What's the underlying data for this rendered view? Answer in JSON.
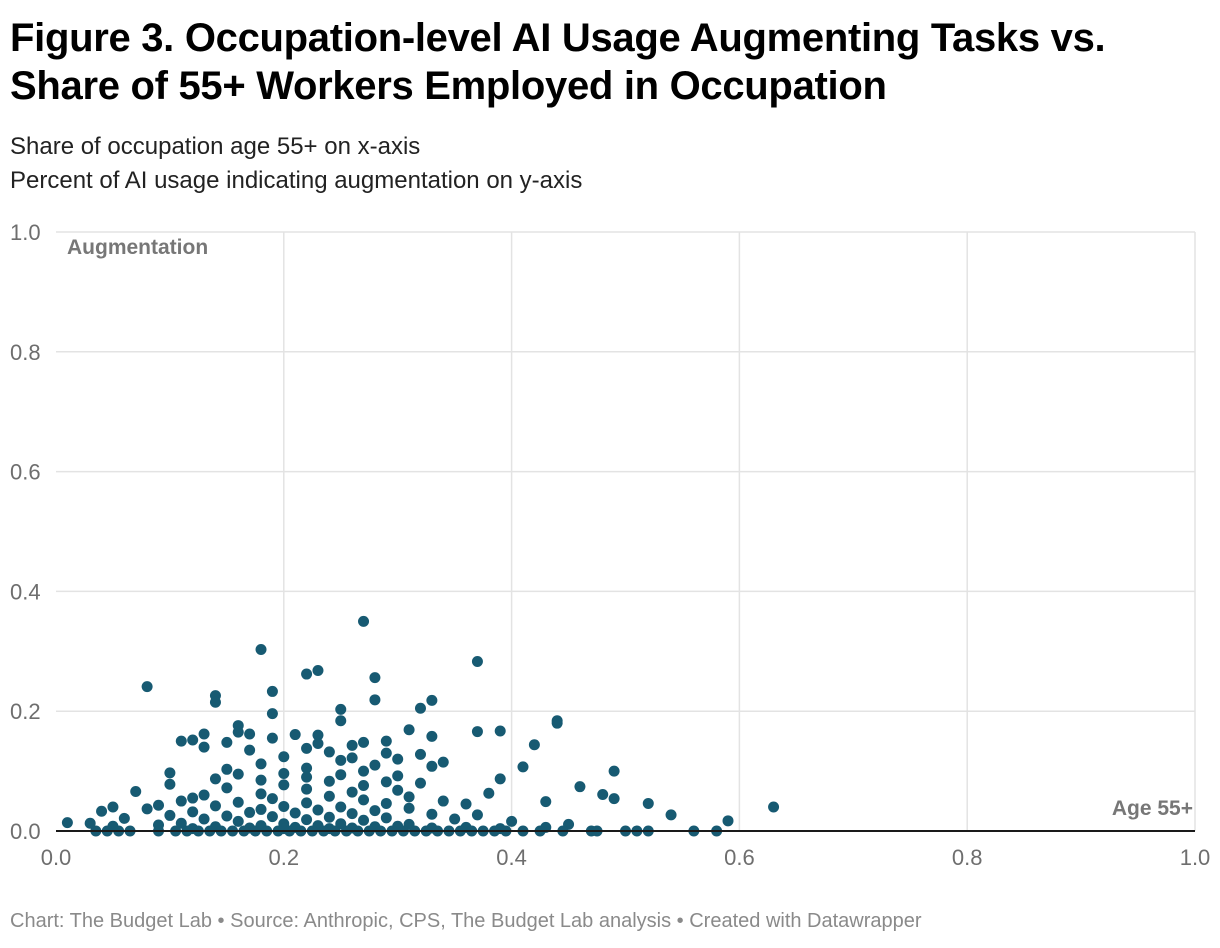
{
  "title": "Figure 3. Occupation-level AI Usage Augmenting Tasks vs. Share of 55+ Workers Employed in Occupation",
  "subtitle": {
    "line1": "Share of occupation age 55+ on x-axis",
    "line2": "Percent of AI usage indicating augmentation on y-axis"
  },
  "footer": "Chart: The Budget Lab • Source: Anthropic, CPS, The Budget Lab analysis • Created with Datawrapper",
  "colors": {
    "point": "#175a72",
    "grid": "#e3e3e3",
    "axis": "#1a1a1a",
    "tick_label": "#6e6e6e",
    "annotation": "#777777"
  },
  "chart_data": {
    "type": "scatter",
    "title": "",
    "xlabel": "",
    "ylabel": "",
    "annotations": {
      "y_axis": "Augmentation",
      "x_axis": "Age 55+"
    },
    "xlim": [
      0,
      1.0
    ],
    "ylim": [
      0,
      1.0
    ],
    "x_ticks": [
      0,
      0.2,
      0.4,
      0.6,
      0.8,
      1.0
    ],
    "x_tick_labels": [
      "0.0",
      "0.2",
      "0.4",
      "0.6",
      "0.8",
      "1.0"
    ],
    "y_ticks": [
      0,
      0.2,
      0.4,
      0.6,
      0.8,
      1.0
    ],
    "y_tick_labels": [
      "0.0",
      "0.2",
      "0.4",
      "0.6",
      "0.8",
      "1.0"
    ],
    "grid": true,
    "points": [
      {
        "x": 0.27,
        "y": 0.35
      },
      {
        "x": 0.18,
        "y": 0.303
      },
      {
        "x": 0.37,
        "y": 0.283
      },
      {
        "x": 0.23,
        "y": 0.268
      },
      {
        "x": 0.22,
        "y": 0.262
      },
      {
        "x": 0.28,
        "y": 0.256
      },
      {
        "x": 0.08,
        "y": 0.241
      },
      {
        "x": 0.19,
        "y": 0.233
      },
      {
        "x": 0.14,
        "y": 0.226
      },
      {
        "x": 0.28,
        "y": 0.219
      },
      {
        "x": 0.33,
        "y": 0.218
      },
      {
        "x": 0.14,
        "y": 0.215
      },
      {
        "x": 0.32,
        "y": 0.205
      },
      {
        "x": 0.25,
        "y": 0.203
      },
      {
        "x": 0.19,
        "y": 0.196
      },
      {
        "x": 0.25,
        "y": 0.184
      },
      {
        "x": 0.44,
        "y": 0.184
      },
      {
        "x": 0.44,
        "y": 0.18
      },
      {
        "x": 0.16,
        "y": 0.176
      },
      {
        "x": 0.31,
        "y": 0.169
      },
      {
        "x": 0.37,
        "y": 0.166
      },
      {
        "x": 0.39,
        "y": 0.167
      },
      {
        "x": 0.16,
        "y": 0.165
      },
      {
        "x": 0.13,
        "y": 0.162
      },
      {
        "x": 0.17,
        "y": 0.162
      },
      {
        "x": 0.21,
        "y": 0.161
      },
      {
        "x": 0.23,
        "y": 0.16
      },
      {
        "x": 0.33,
        "y": 0.158
      },
      {
        "x": 0.19,
        "y": 0.155
      },
      {
        "x": 0.12,
        "y": 0.152
      },
      {
        "x": 0.11,
        "y": 0.15
      },
      {
        "x": 0.15,
        "y": 0.148
      },
      {
        "x": 0.27,
        "y": 0.148
      },
      {
        "x": 0.29,
        "y": 0.15
      },
      {
        "x": 0.23,
        "y": 0.146
      },
      {
        "x": 0.26,
        "y": 0.143
      },
      {
        "x": 0.42,
        "y": 0.144
      },
      {
        "x": 0.13,
        "y": 0.14
      },
      {
        "x": 0.22,
        "y": 0.138
      },
      {
        "x": 0.17,
        "y": 0.135
      },
      {
        "x": 0.24,
        "y": 0.132
      },
      {
        "x": 0.29,
        "y": 0.13
      },
      {
        "x": 0.32,
        "y": 0.128
      },
      {
        "x": 0.2,
        "y": 0.124
      },
      {
        "x": 0.26,
        "y": 0.122
      },
      {
        "x": 0.3,
        "y": 0.12
      },
      {
        "x": 0.34,
        "y": 0.115
      },
      {
        "x": 0.25,
        "y": 0.118
      },
      {
        "x": 0.18,
        "y": 0.112
      },
      {
        "x": 0.28,
        "y": 0.11
      },
      {
        "x": 0.33,
        "y": 0.108
      },
      {
        "x": 0.41,
        "y": 0.107
      },
      {
        "x": 0.22,
        "y": 0.105
      },
      {
        "x": 0.15,
        "y": 0.103
      },
      {
        "x": 0.27,
        "y": 0.1
      },
      {
        "x": 0.49,
        "y": 0.1
      },
      {
        "x": 0.1,
        "y": 0.097
      },
      {
        "x": 0.16,
        "y": 0.095
      },
      {
        "x": 0.2,
        "y": 0.096
      },
      {
        "x": 0.25,
        "y": 0.094
      },
      {
        "x": 0.3,
        "y": 0.092
      },
      {
        "x": 0.22,
        "y": 0.09
      },
      {
        "x": 0.14,
        "y": 0.087
      },
      {
        "x": 0.39,
        "y": 0.087
      },
      {
        "x": 0.18,
        "y": 0.085
      },
      {
        "x": 0.24,
        "y": 0.083
      },
      {
        "x": 0.29,
        "y": 0.082
      },
      {
        "x": 0.32,
        "y": 0.08
      },
      {
        "x": 0.1,
        "y": 0.078
      },
      {
        "x": 0.2,
        "y": 0.077
      },
      {
        "x": 0.27,
        "y": 0.076
      },
      {
        "x": 0.46,
        "y": 0.074
      },
      {
        "x": 0.15,
        "y": 0.072
      },
      {
        "x": 0.22,
        "y": 0.07
      },
      {
        "x": 0.3,
        "y": 0.068
      },
      {
        "x": 0.07,
        "y": 0.066
      },
      {
        "x": 0.26,
        "y": 0.065
      },
      {
        "x": 0.38,
        "y": 0.063
      },
      {
        "x": 0.18,
        "y": 0.062
      },
      {
        "x": 0.48,
        "y": 0.061
      },
      {
        "x": 0.13,
        "y": 0.06
      },
      {
        "x": 0.24,
        "y": 0.058
      },
      {
        "x": 0.31,
        "y": 0.057
      },
      {
        "x": 0.12,
        "y": 0.055
      },
      {
        "x": 0.19,
        "y": 0.054
      },
      {
        "x": 0.49,
        "y": 0.054
      },
      {
        "x": 0.27,
        "y": 0.052
      },
      {
        "x": 0.34,
        "y": 0.05
      },
      {
        "x": 0.11,
        "y": 0.05
      },
      {
        "x": 0.43,
        "y": 0.049
      },
      {
        "x": 0.52,
        "y": 0.046
      },
      {
        "x": 0.16,
        "y": 0.048
      },
      {
        "x": 0.22,
        "y": 0.047
      },
      {
        "x": 0.29,
        "y": 0.046
      },
      {
        "x": 0.36,
        "y": 0.045
      },
      {
        "x": 0.09,
        "y": 0.043
      },
      {
        "x": 0.14,
        "y": 0.042
      },
      {
        "x": 0.2,
        "y": 0.041
      },
      {
        "x": 0.25,
        "y": 0.04
      },
      {
        "x": 0.05,
        "y": 0.04
      },
      {
        "x": 0.63,
        "y": 0.04
      },
      {
        "x": 0.31,
        "y": 0.038
      },
      {
        "x": 0.08,
        "y": 0.037
      },
      {
        "x": 0.18,
        "y": 0.036
      },
      {
        "x": 0.23,
        "y": 0.035
      },
      {
        "x": 0.28,
        "y": 0.034
      },
      {
        "x": 0.04,
        "y": 0.033
      },
      {
        "x": 0.12,
        "y": 0.032
      },
      {
        "x": 0.17,
        "y": 0.031
      },
      {
        "x": 0.21,
        "y": 0.03
      },
      {
        "x": 0.26,
        "y": 0.029
      },
      {
        "x": 0.33,
        "y": 0.028
      },
      {
        "x": 0.54,
        "y": 0.027
      },
      {
        "x": 0.37,
        "y": 0.027
      },
      {
        "x": 0.1,
        "y": 0.026
      },
      {
        "x": 0.15,
        "y": 0.025
      },
      {
        "x": 0.19,
        "y": 0.024
      },
      {
        "x": 0.24,
        "y": 0.023
      },
      {
        "x": 0.29,
        "y": 0.022
      },
      {
        "x": 0.06,
        "y": 0.021
      },
      {
        "x": 0.13,
        "y": 0.02
      },
      {
        "x": 0.35,
        "y": 0.02
      },
      {
        "x": 0.22,
        "y": 0.019
      },
      {
        "x": 0.27,
        "y": 0.018
      },
      {
        "x": 0.59,
        "y": 0.017
      },
      {
        "x": 0.4,
        "y": 0.016
      },
      {
        "x": 0.16,
        "y": 0.016
      },
      {
        "x": 0.01,
        "y": 0.014
      },
      {
        "x": 0.03,
        "y": 0.013
      },
      {
        "x": 0.11,
        "y": 0.013
      },
      {
        "x": 0.2,
        "y": 0.012
      },
      {
        "x": 0.25,
        "y": 0.012
      },
      {
        "x": 0.31,
        "y": 0.011
      },
      {
        "x": 0.45,
        "y": 0.011
      },
      {
        "x": 0.09,
        "y": 0.01
      },
      {
        "x": 0.18,
        "y": 0.009
      },
      {
        "x": 0.23,
        "y": 0.009
      },
      {
        "x": 0.3,
        "y": 0.008
      },
      {
        "x": 0.05,
        "y": 0.008
      },
      {
        "x": 0.14,
        "y": 0.007
      },
      {
        "x": 0.28,
        "y": 0.007
      },
      {
        "x": 0.36,
        "y": 0.006
      },
      {
        "x": 0.21,
        "y": 0.006
      },
      {
        "x": 0.43,
        "y": 0.006
      },
      {
        "x": 0.17,
        "y": 0.005
      },
      {
        "x": 0.26,
        "y": 0.005
      },
      {
        "x": 0.33,
        "y": 0.005
      },
      {
        "x": 0.12,
        "y": 0.004
      },
      {
        "x": 0.2,
        "y": 0.004
      },
      {
        "x": 0.24,
        "y": 0.004
      },
      {
        "x": 0.39,
        "y": 0.004
      },
      {
        "x": 0.035,
        "y": 0
      },
      {
        "x": 0.045,
        "y": 0
      },
      {
        "x": 0.055,
        "y": 0
      },
      {
        "x": 0.065,
        "y": 0
      },
      {
        "x": 0.09,
        "y": 0
      },
      {
        "x": 0.105,
        "y": 0
      },
      {
        "x": 0.115,
        "y": 0
      },
      {
        "x": 0.125,
        "y": 0
      },
      {
        "x": 0.135,
        "y": 0
      },
      {
        "x": 0.145,
        "y": 0
      },
      {
        "x": 0.155,
        "y": 0
      },
      {
        "x": 0.165,
        "y": 0
      },
      {
        "x": 0.175,
        "y": 0
      },
      {
        "x": 0.185,
        "y": 0
      },
      {
        "x": 0.195,
        "y": 0
      },
      {
        "x": 0.205,
        "y": 0
      },
      {
        "x": 0.215,
        "y": 0
      },
      {
        "x": 0.225,
        "y": 0
      },
      {
        "x": 0.235,
        "y": 0
      },
      {
        "x": 0.245,
        "y": 0
      },
      {
        "x": 0.255,
        "y": 0
      },
      {
        "x": 0.265,
        "y": 0
      },
      {
        "x": 0.275,
        "y": 0
      },
      {
        "x": 0.285,
        "y": 0
      },
      {
        "x": 0.295,
        "y": 0
      },
      {
        "x": 0.305,
        "y": 0
      },
      {
        "x": 0.315,
        "y": 0
      },
      {
        "x": 0.325,
        "y": 0
      },
      {
        "x": 0.335,
        "y": 0
      },
      {
        "x": 0.345,
        "y": 0
      },
      {
        "x": 0.355,
        "y": 0
      },
      {
        "x": 0.365,
        "y": 0
      },
      {
        "x": 0.375,
        "y": 0
      },
      {
        "x": 0.385,
        "y": 0
      },
      {
        "x": 0.395,
        "y": 0
      },
      {
        "x": 0.41,
        "y": 0
      },
      {
        "x": 0.425,
        "y": 0
      },
      {
        "x": 0.445,
        "y": 0
      },
      {
        "x": 0.47,
        "y": 0
      },
      {
        "x": 0.475,
        "y": 0
      },
      {
        "x": 0.5,
        "y": 0
      },
      {
        "x": 0.51,
        "y": 0
      },
      {
        "x": 0.52,
        "y": 0
      },
      {
        "x": 0.56,
        "y": 0
      },
      {
        "x": 0.58,
        "y": 0
      }
    ]
  }
}
